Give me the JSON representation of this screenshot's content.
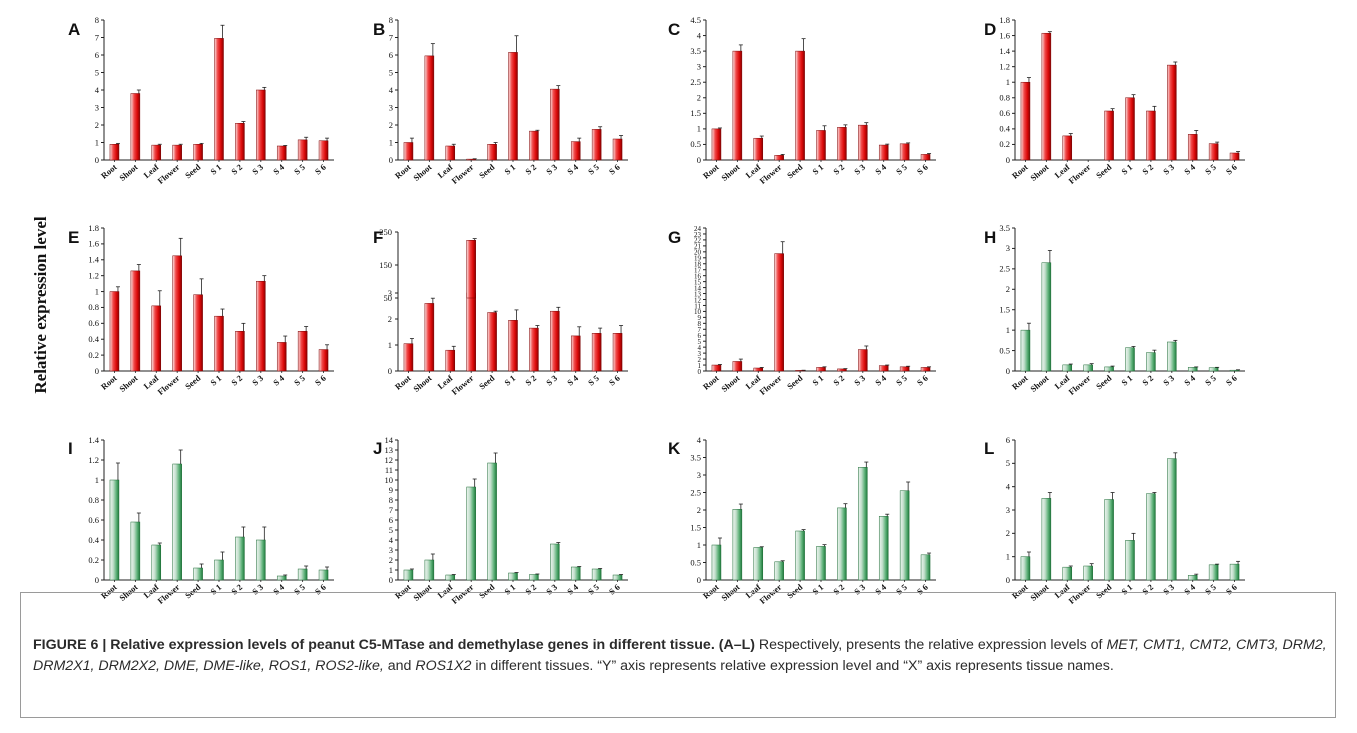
{
  "figure": {
    "y_axis_label": "Relative expression level",
    "caption": {
      "label": "FIGURE 6 | Relative expression levels of peanut C5-MTase and demethylase genes in different tissue.",
      "range": "(A–L)",
      "text_1": " Respectively, presents the relative expression levels of ",
      "genes": "MET, CMT1, CMT2, CMT3, DRM2, DRM2X1, DRM2X2, DME, DME-like, ROS1, ROS2-like,",
      "text_2": " and ",
      "gene_last": "ROS1X2",
      "text_3": " in different tissues. “Y” axis represents relative expression level and “X” axis represents tissue names."
    }
  },
  "chart_data": [
    {
      "panel": "A",
      "type": "bar",
      "bar_color": "red",
      "categories": [
        "Root",
        "Shoot",
        "Leaf",
        "Flower",
        "Seed",
        "S 1",
        "S 2",
        "S 3",
        "S 4",
        "S 5",
        "S 6"
      ],
      "values": [
        0.9,
        3.8,
        0.85,
        0.85,
        0.9,
        6.95,
        2.1,
        4.0,
        0.8,
        1.15,
        1.1
      ],
      "errors": [
        0.05,
        0.2,
        0.05,
        0.05,
        0.05,
        0.75,
        0.1,
        0.15,
        0.03,
        0.15,
        0.15
      ],
      "ylim": [
        0,
        8
      ],
      "yticks": [
        "0",
        "1",
        "2",
        "3",
        "4",
        "5",
        "6",
        "7",
        "8"
      ]
    },
    {
      "panel": "B",
      "type": "bar",
      "bar_color": "red",
      "categories": [
        "Root",
        "Shoot",
        "Leaf",
        "Flower",
        "Seed",
        "S 1",
        "S 2",
        "S 3",
        "S 4",
        "S 5",
        "S 6"
      ],
      "values": [
        1.0,
        5.95,
        0.8,
        0.05,
        0.9,
        6.15,
        1.65,
        4.05,
        1.05,
        1.75,
        1.2
      ],
      "errors": [
        0.25,
        0.7,
        0.1,
        0.02,
        0.1,
        0.95,
        0.05,
        0.2,
        0.2,
        0.15,
        0.2
      ],
      "ylim": [
        0,
        8
      ],
      "yticks": [
        "0",
        "1",
        "2",
        "3",
        "4",
        "5",
        "6",
        "7",
        "8"
      ]
    },
    {
      "panel": "C",
      "type": "bar",
      "bar_color": "red",
      "categories": [
        "Root",
        "Shoot",
        "Leaf",
        "Flower",
        "Seed",
        "S 1",
        "S 2",
        "S 3",
        "S 4",
        "S 5",
        "S 6"
      ],
      "values": [
        1.0,
        3.5,
        0.7,
        0.15,
        3.5,
        0.95,
        1.05,
        1.12,
        0.48,
        0.52,
        0.18
      ],
      "errors": [
        0.03,
        0.2,
        0.07,
        0.03,
        0.4,
        0.15,
        0.08,
        0.08,
        0.03,
        0.03,
        0.03
      ],
      "ylim": [
        0,
        4.5
      ],
      "yticks": [
        "0",
        "0.5",
        "1",
        "1.5",
        "2",
        "2.5",
        "3",
        "3.5",
        "4",
        "4.5"
      ]
    },
    {
      "panel": "D",
      "type": "bar",
      "bar_color": "red",
      "categories": [
        "Root",
        "Shoot",
        "Leaf",
        "Flower",
        "Seed",
        "S 1",
        "S 2",
        "S 3",
        "S 4",
        "S 5",
        "S 6"
      ],
      "values": [
        1.0,
        1.63,
        0.31,
        0.0,
        0.63,
        0.8,
        0.63,
        1.22,
        0.33,
        0.21,
        0.09
      ],
      "errors": [
        0.06,
        0.02,
        0.03,
        0.0,
        0.03,
        0.04,
        0.06,
        0.04,
        0.05,
        0.02,
        0.02
      ],
      "ylim": [
        0,
        1.8
      ],
      "yticks": [
        "0",
        "0.2",
        "0.4",
        "0.6",
        "0.8",
        "1",
        "1.2",
        "1.4",
        "1.6",
        "1.8"
      ]
    },
    {
      "panel": "E",
      "type": "bar",
      "bar_color": "red",
      "categories": [
        "Root",
        "Shoot",
        "Leaf",
        "Flower",
        "Seed",
        "S 1",
        "S 2",
        "S 3",
        "S 4",
        "S 5",
        "S 6"
      ],
      "values": [
        1.0,
        1.26,
        0.82,
        1.45,
        0.96,
        0.69,
        0.5,
        1.13,
        0.36,
        0.5,
        0.27
      ],
      "errors": [
        0.06,
        0.08,
        0.19,
        0.22,
        0.2,
        0.09,
        0.1,
        0.07,
        0.08,
        0.06,
        0.06
      ],
      "ylim": [
        0,
        1.8
      ],
      "yticks": [
        "0",
        "0.2",
        "0.4",
        "0.6",
        "0.8",
        "1",
        "1.2",
        "1.4",
        "1.6",
        "1.8"
      ]
    },
    {
      "panel": "F",
      "type": "bar",
      "bar_color": "red",
      "broken_axis": true,
      "categories": [
        "Root",
        "Shoot",
        "Leaf",
        "Flower",
        "Seed",
        "S 1",
        "S 2",
        "S 3",
        "S 4",
        "S 5",
        "S 6"
      ],
      "values": [
        1.05,
        2.6,
        0.8,
        225,
        2.25,
        1.95,
        1.65,
        2.3,
        1.35,
        1.45,
        1.45
      ],
      "errors": [
        0.2,
        0.2,
        0.15,
        5,
        0.05,
        0.4,
        0.1,
        0.15,
        0.35,
        0.2,
        0.3
      ],
      "ylim_lower": [
        0,
        3
      ],
      "ylim_upper": [
        50,
        250
      ],
      "yticks_lower": [
        "0",
        "1",
        "2",
        "3"
      ],
      "yticks_upper": [
        "50",
        "150",
        "250"
      ]
    },
    {
      "panel": "G",
      "type": "bar",
      "bar_color": "red",
      "categories": [
        "Root",
        "Shoot",
        "Leaf",
        "Flower",
        "Seed",
        "S 1",
        "S 2",
        "S 3",
        "S 4",
        "S 5",
        "S 6"
      ],
      "values": [
        1.0,
        1.6,
        0.5,
        19.7,
        0.1,
        0.6,
        0.35,
        3.6,
        0.9,
        0.7,
        0.6
      ],
      "errors": [
        0.1,
        0.4,
        0.1,
        2.0,
        0.03,
        0.1,
        0.05,
        0.6,
        0.1,
        0.1,
        0.1
      ],
      "ylim": [
        0,
        24
      ],
      "yticks": [
        "0",
        "1",
        "2",
        "3",
        "4",
        "5",
        "6",
        "7",
        "8",
        "9",
        "10",
        "11",
        "12",
        "13",
        "14",
        "15",
        "16",
        "17",
        "18",
        "19",
        "20",
        "21",
        "22",
        "23",
        "24"
      ]
    },
    {
      "panel": "H",
      "type": "bar",
      "bar_color": "green",
      "categories": [
        "Root",
        "Shoot",
        "Leaf",
        "Flower",
        "Seed",
        "S 1",
        "S 2",
        "S 3",
        "S 4",
        "S 5",
        "S 6"
      ],
      "values": [
        1.0,
        2.65,
        0.15,
        0.15,
        0.1,
        0.57,
        0.45,
        0.71,
        0.09,
        0.08,
        0.02
      ],
      "errors": [
        0.17,
        0.3,
        0.02,
        0.03,
        0.02,
        0.03,
        0.06,
        0.04,
        0.01,
        0.01,
        0.01
      ],
      "ylim": [
        0,
        3.5
      ],
      "yticks": [
        "0",
        "0.5",
        "1",
        "1.5",
        "2",
        "2.5",
        "3",
        "3.5"
      ]
    },
    {
      "panel": "I",
      "type": "bar",
      "bar_color": "green",
      "categories": [
        "Root",
        "Shoot",
        "Leaf",
        "Flower",
        "Seed",
        "S 1",
        "S 2",
        "S 3",
        "S 4",
        "S 5",
        "S 6"
      ],
      "values": [
        1.0,
        0.58,
        0.35,
        1.16,
        0.12,
        0.2,
        0.43,
        0.4,
        0.04,
        0.11,
        0.1
      ],
      "errors": [
        0.17,
        0.09,
        0.02,
        0.14,
        0.04,
        0.08,
        0.1,
        0.13,
        0.01,
        0.03,
        0.03
      ],
      "ylim": [
        0,
        1.4
      ],
      "yticks": [
        "0",
        "0.2",
        "0.4",
        "0.6",
        "0.8",
        "1",
        "1.2",
        "1.4"
      ]
    },
    {
      "panel": "J",
      "type": "bar",
      "bar_color": "green",
      "categories": [
        "Root",
        "Shoot",
        "Leaf",
        "Flower",
        "Seed",
        "S 1",
        "S 2",
        "S 3",
        "S 4",
        "S 5",
        "S 6"
      ],
      "values": [
        1.0,
        2.0,
        0.5,
        9.3,
        11.7,
        0.7,
        0.55,
        3.6,
        1.3,
        1.1,
        0.5
      ],
      "errors": [
        0.1,
        0.6,
        0.05,
        0.8,
        1.0,
        0.05,
        0.05,
        0.15,
        0.05,
        0.05,
        0.05
      ],
      "ylim": [
        0,
        14
      ],
      "yticks": [
        "0",
        "1",
        "2",
        "3",
        "4",
        "5",
        "6",
        "7",
        "8",
        "9",
        "10",
        "11",
        "12",
        "13",
        "14"
      ]
    },
    {
      "panel": "K",
      "type": "bar",
      "bar_color": "green",
      "categories": [
        "Root",
        "Shoot",
        "Leaf",
        "Flower",
        "Seed",
        "S 1",
        "S 2",
        "S 3",
        "S 4",
        "S 5",
        "S 6"
      ],
      "values": [
        1.0,
        2.02,
        0.93,
        0.52,
        1.4,
        0.96,
        2.06,
        3.22,
        1.82,
        2.55,
        0.72
      ],
      "errors": [
        0.2,
        0.15,
        0.02,
        0.03,
        0.04,
        0.05,
        0.12,
        0.15,
        0.06,
        0.25,
        0.05
      ],
      "ylim": [
        0,
        4
      ],
      "yticks": [
        "0",
        "0.5",
        "1",
        "1.5",
        "2",
        "2.5",
        "3",
        "3.5",
        "4"
      ]
    },
    {
      "panel": "L",
      "type": "bar",
      "bar_color": "green",
      "categories": [
        "Root",
        "Shoot",
        "Leaf",
        "Flower",
        "Seed",
        "S 1",
        "S 2",
        "S 3",
        "S 4",
        "S 5",
        "S 6"
      ],
      "values": [
        1.0,
        3.5,
        0.55,
        0.6,
        3.45,
        1.7,
        3.7,
        5.2,
        0.2,
        0.65,
        0.68
      ],
      "errors": [
        0.2,
        0.25,
        0.05,
        0.1,
        0.3,
        0.3,
        0.05,
        0.25,
        0.05,
        0.03,
        0.12
      ],
      "ylim": [
        0,
        6
      ],
      "yticks": [
        "0",
        "1",
        "2",
        "3",
        "4",
        "5",
        "6"
      ]
    }
  ]
}
